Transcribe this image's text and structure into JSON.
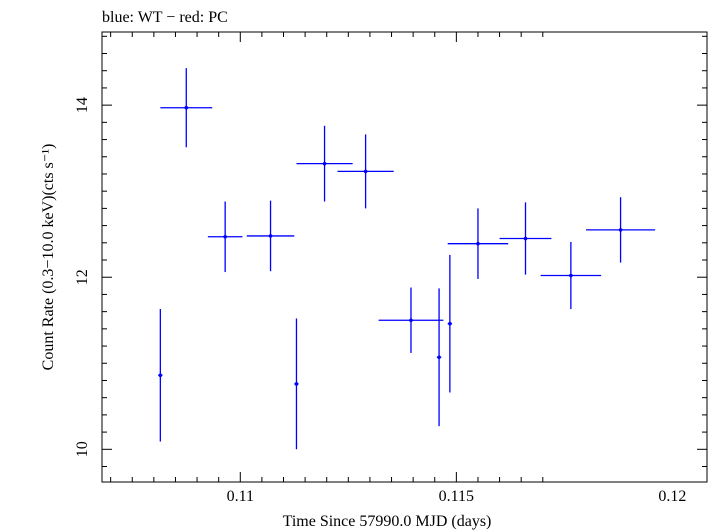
{
  "chart_data": {
    "type": "scatter",
    "title": "blue: WT − red: PC",
    "xlabel": "Time Since 57990.0 MJD (days)",
    "ylabel": "Count Rate (0.3−10.0 keV)(cts s⁻¹)",
    "xlim": [
      0.1068,
      0.1208
    ],
    "ylim": [
      9.62,
      14.85
    ],
    "x_ticks": [
      0.11,
      0.115,
      0.12
    ],
    "x_tick_labels": [
      "0.11",
      "0.115",
      "0.12"
    ],
    "y_ticks": [
      10,
      12,
      14
    ],
    "y_tick_labels": [
      "10",
      "12",
      "14"
    ],
    "grid": false,
    "series": [
      {
        "name": "WT",
        "color": "#0000ff",
        "points": [
          {
            "x": 0.10815,
            "y": 10.86,
            "xerr": 5e-05,
            "yerr": 0.77
          },
          {
            "x": 0.10875,
            "y": 13.97,
            "xerr": 0.0006,
            "yerr": 0.46
          },
          {
            "x": 0.10965,
            "y": 12.47,
            "xerr": 0.0004,
            "yerr": 0.41
          },
          {
            "x": 0.1107,
            "y": 12.48,
            "xerr": 0.00055,
            "yerr": 0.41
          },
          {
            "x": 0.1113,
            "y": 10.76,
            "xerr": 5e-05,
            "yerr": 0.76
          },
          {
            "x": 0.11195,
            "y": 13.32,
            "xerr": 0.00065,
            "yerr": 0.44
          },
          {
            "x": 0.1129,
            "y": 13.23,
            "xerr": 0.00065,
            "yerr": 0.43
          },
          {
            "x": 0.11395,
            "y": 11.5,
            "xerr": 0.00075,
            "yerr": 0.38
          },
          {
            "x": 0.1146,
            "y": 11.07,
            "xerr": 5e-05,
            "yerr": 0.8
          },
          {
            "x": 0.11485,
            "y": 11.46,
            "xerr": 5e-05,
            "yerr": 0.8
          },
          {
            "x": 0.1155,
            "y": 12.39,
            "xerr": 0.0007,
            "yerr": 0.41
          },
          {
            "x": 0.1166,
            "y": 12.45,
            "xerr": 0.0006,
            "yerr": 0.42
          },
          {
            "x": 0.11765,
            "y": 12.02,
            "xerr": 0.0007,
            "yerr": 0.39
          },
          {
            "x": 0.1188,
            "y": 12.55,
            "xerr": 0.0008,
            "yerr": 0.38
          }
        ]
      }
    ]
  }
}
